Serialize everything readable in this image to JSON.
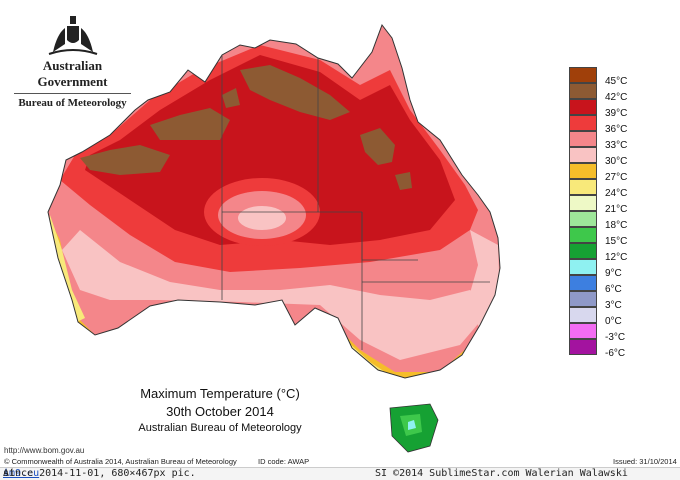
{
  "header": {
    "government": "Australian Government",
    "bureau": "Bureau of Meteorology"
  },
  "map": {
    "title": "Maximum Temperature (°C)",
    "date": "30th October 2014",
    "agency": "Australian Bureau of Meteorology",
    "url": "http://www.bom.gov.au"
  },
  "legend": [
    {
      "label": "45°C",
      "color": "#a0400a"
    },
    {
      "label": "42°C",
      "color": "#8d5a33"
    },
    {
      "label": "39°C",
      "color": "#c8141c"
    },
    {
      "label": "36°C",
      "color": "#ee3b3b"
    },
    {
      "label": "33°C",
      "color": "#f4868a"
    },
    {
      "label": "30°C",
      "color": "#f9c3c3"
    },
    {
      "label": "27°C",
      "color": "#f5bd2a"
    },
    {
      "label": "24°C",
      "color": "#f8e97a"
    },
    {
      "label": "21°C",
      "color": "#eef9c6"
    },
    {
      "label": "18°C",
      "color": "#9ee79a"
    },
    {
      "label": "15°C",
      "color": "#3ec84b"
    },
    {
      "label": "12°C",
      "color": "#16a133"
    },
    {
      "label": "9°C",
      "color": "#8ff1f1"
    },
    {
      "label": "6°C",
      "color": "#3d7fe0"
    },
    {
      "label": "3°C",
      "color": "#8f99c8"
    },
    {
      "label": "0°C",
      "color": "#d8d8ee"
    },
    {
      "label": "-3°C",
      "color": "#f26cf2"
    },
    {
      "label": "-6°C",
      "color": "#a3139f"
    }
  ],
  "footer": {
    "copyright": "© Commonwealth of Australia 2014, Australian Bureau of Meteorology",
    "id_code": "ID code: AWAP",
    "issued": "Issued: 31/10/2014"
  },
  "watermark": {
    "prefix": "At ",
    "site": "im9.eu",
    "info": " since 2014-11-01, 680×467px pic.",
    "right": "SI ©2014 SublimeStar.com Walerian Walawski"
  }
}
